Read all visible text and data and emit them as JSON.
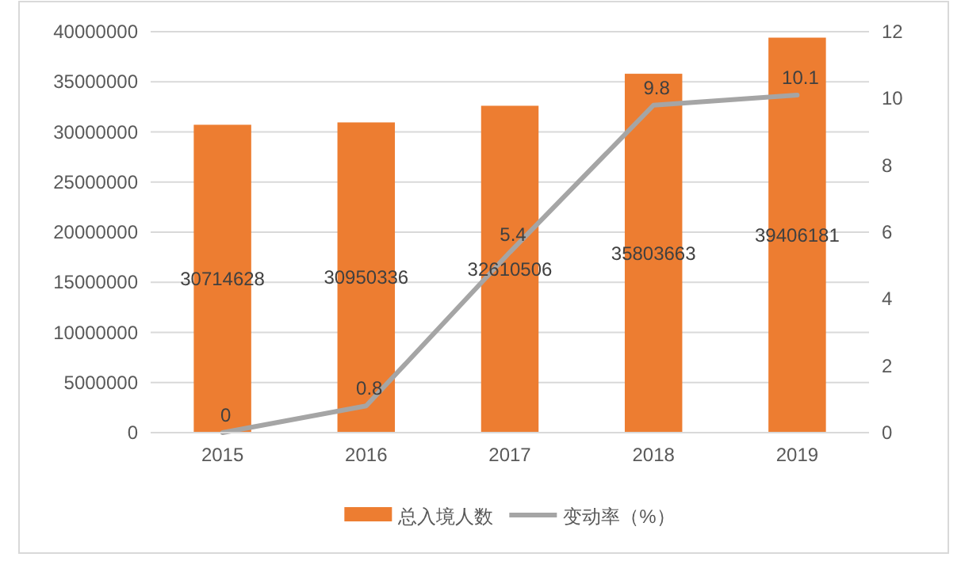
{
  "chart_data": {
    "type": "bar",
    "categories": [
      "2015",
      "2016",
      "2017",
      "2018",
      "2019"
    ],
    "series": [
      {
        "name": "总入境人数",
        "color": "#ed7d31",
        "values": [
          30714628,
          30950336,
          32610506,
          35803663,
          39406181
        ]
      },
      {
        "name": "变动率（%）",
        "type": "line",
        "axis": "y2",
        "color": "#a5a5a5",
        "values": [
          0,
          0.8,
          5.4,
          9.8,
          10.1
        ]
      }
    ],
    "ylim": [
      0,
      40000000
    ],
    "yticks": [
      0,
      5000000,
      10000000,
      15000000,
      20000000,
      25000000,
      30000000,
      35000000,
      40000000
    ],
    "y2lim": [
      0,
      12
    ],
    "y2ticks": [
      0,
      2,
      4,
      6,
      8,
      10,
      12
    ],
    "grid": "y",
    "legend": "bottom",
    "data_labels": true,
    "marker": "none"
  }
}
